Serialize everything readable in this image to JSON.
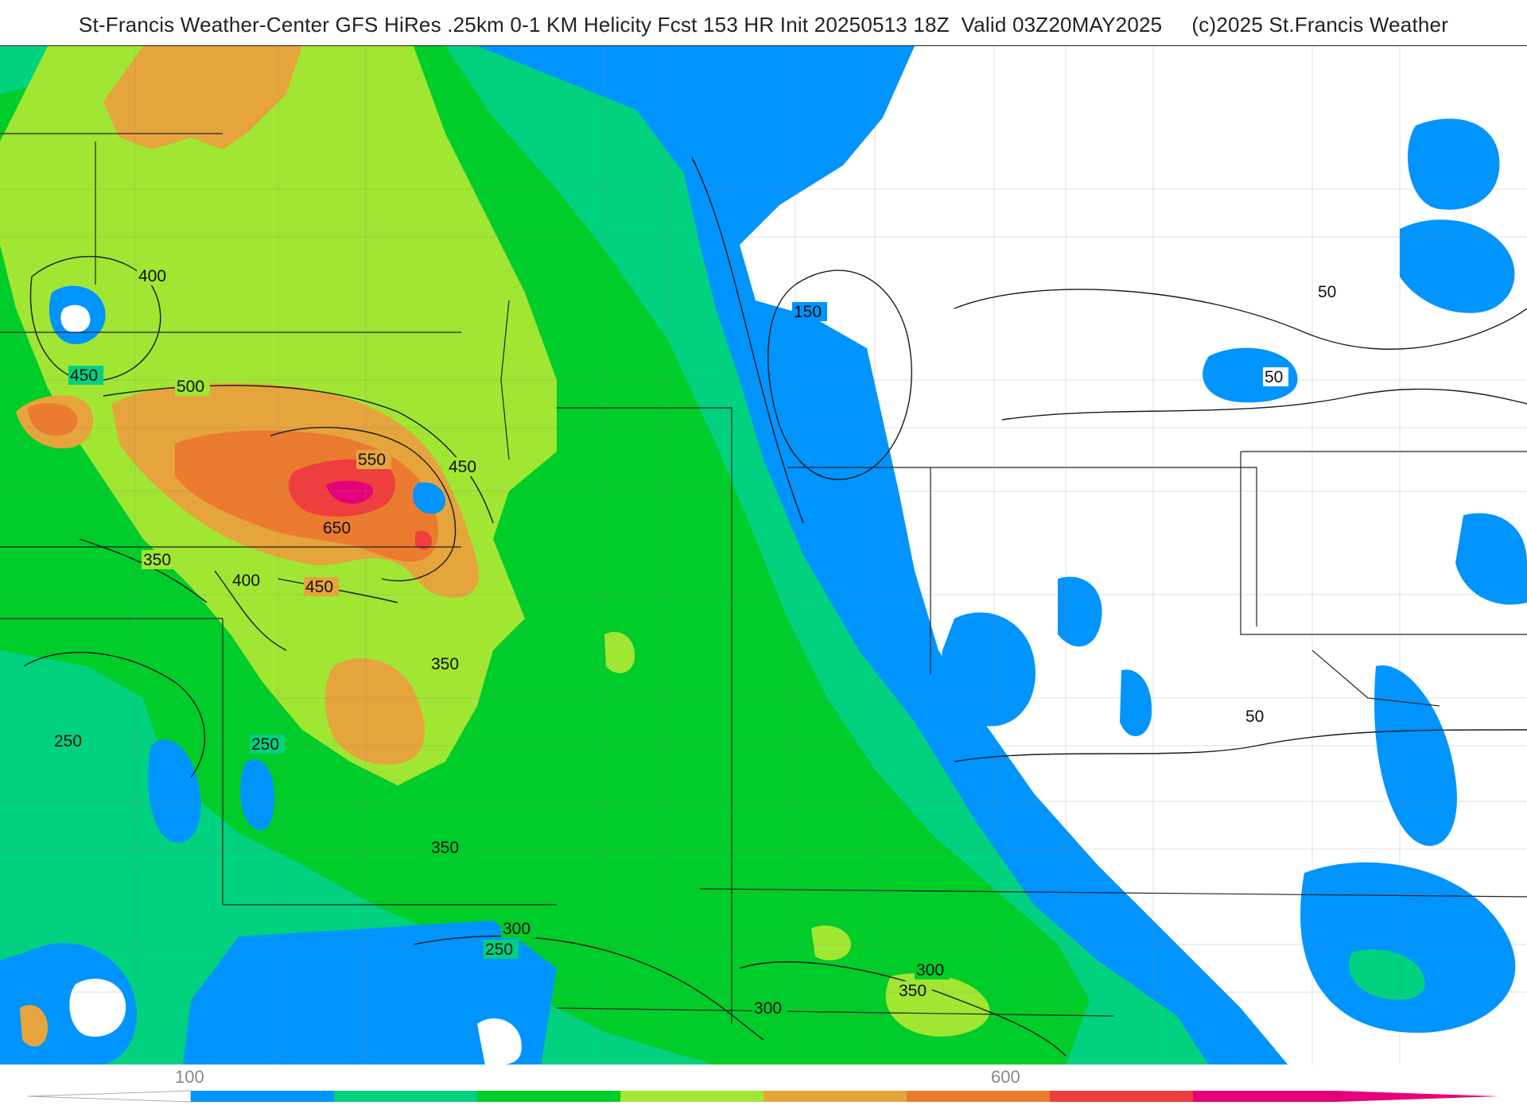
{
  "header": {
    "title": "St-Francis Weather-Center GFS HiRes .25km 0-1 KM Helicity Fcst 153 HR Init 20250513 18Z  Valid 03Z20MAY2025     (c)2025 St.Francis Weather"
  },
  "map": {
    "field": "0-1 KM Helicity",
    "colors": {
      "below_50": "#ffffff",
      "50_100": "#0094ff",
      "100_200": "#00d27f",
      "200_300": "#00cc2a",
      "300_400": "#a0e632",
      "400_500": "#e6a43c",
      "500_600": "#eb7b2e",
      "600_700": "#ee3e3e",
      "700_plus": "#e6007a"
    },
    "contour_labels": [
      {
        "id": "c400-nw",
        "text": "400"
      },
      {
        "id": "c450-w",
        "text": "450"
      },
      {
        "id": "c500",
        "text": "500"
      },
      {
        "id": "c550",
        "text": "550"
      },
      {
        "id": "c450-e",
        "text": "450"
      },
      {
        "id": "c650",
        "text": "650"
      },
      {
        "id": "c350-w",
        "text": "350"
      },
      {
        "id": "c400-c",
        "text": "400"
      },
      {
        "id": "c450-c",
        "text": "450"
      },
      {
        "id": "c350-c",
        "text": "350"
      },
      {
        "id": "c250-w",
        "text": "250"
      },
      {
        "id": "c250-c",
        "text": "250"
      },
      {
        "id": "c350-s",
        "text": "350"
      },
      {
        "id": "c300-s",
        "text": "300"
      },
      {
        "id": "c250-s",
        "text": "250"
      },
      {
        "id": "c300-se",
        "text": "300"
      },
      {
        "id": "c300-e",
        "text": "300"
      },
      {
        "id": "c350-e",
        "text": "350"
      },
      {
        "id": "c150",
        "text": "150"
      },
      {
        "id": "c50-ne",
        "text": "50"
      },
      {
        "id": "c50-e",
        "text": "50"
      },
      {
        "id": "c50-se",
        "text": "50"
      }
    ]
  },
  "legend": {
    "ticks": [
      "100",
      "600"
    ],
    "colors": [
      "#0094ff",
      "#00d27f",
      "#00cc2a",
      "#a0e632",
      "#e6a43c",
      "#eb7b2e",
      "#ee3e3e",
      "#e6007a"
    ]
  }
}
